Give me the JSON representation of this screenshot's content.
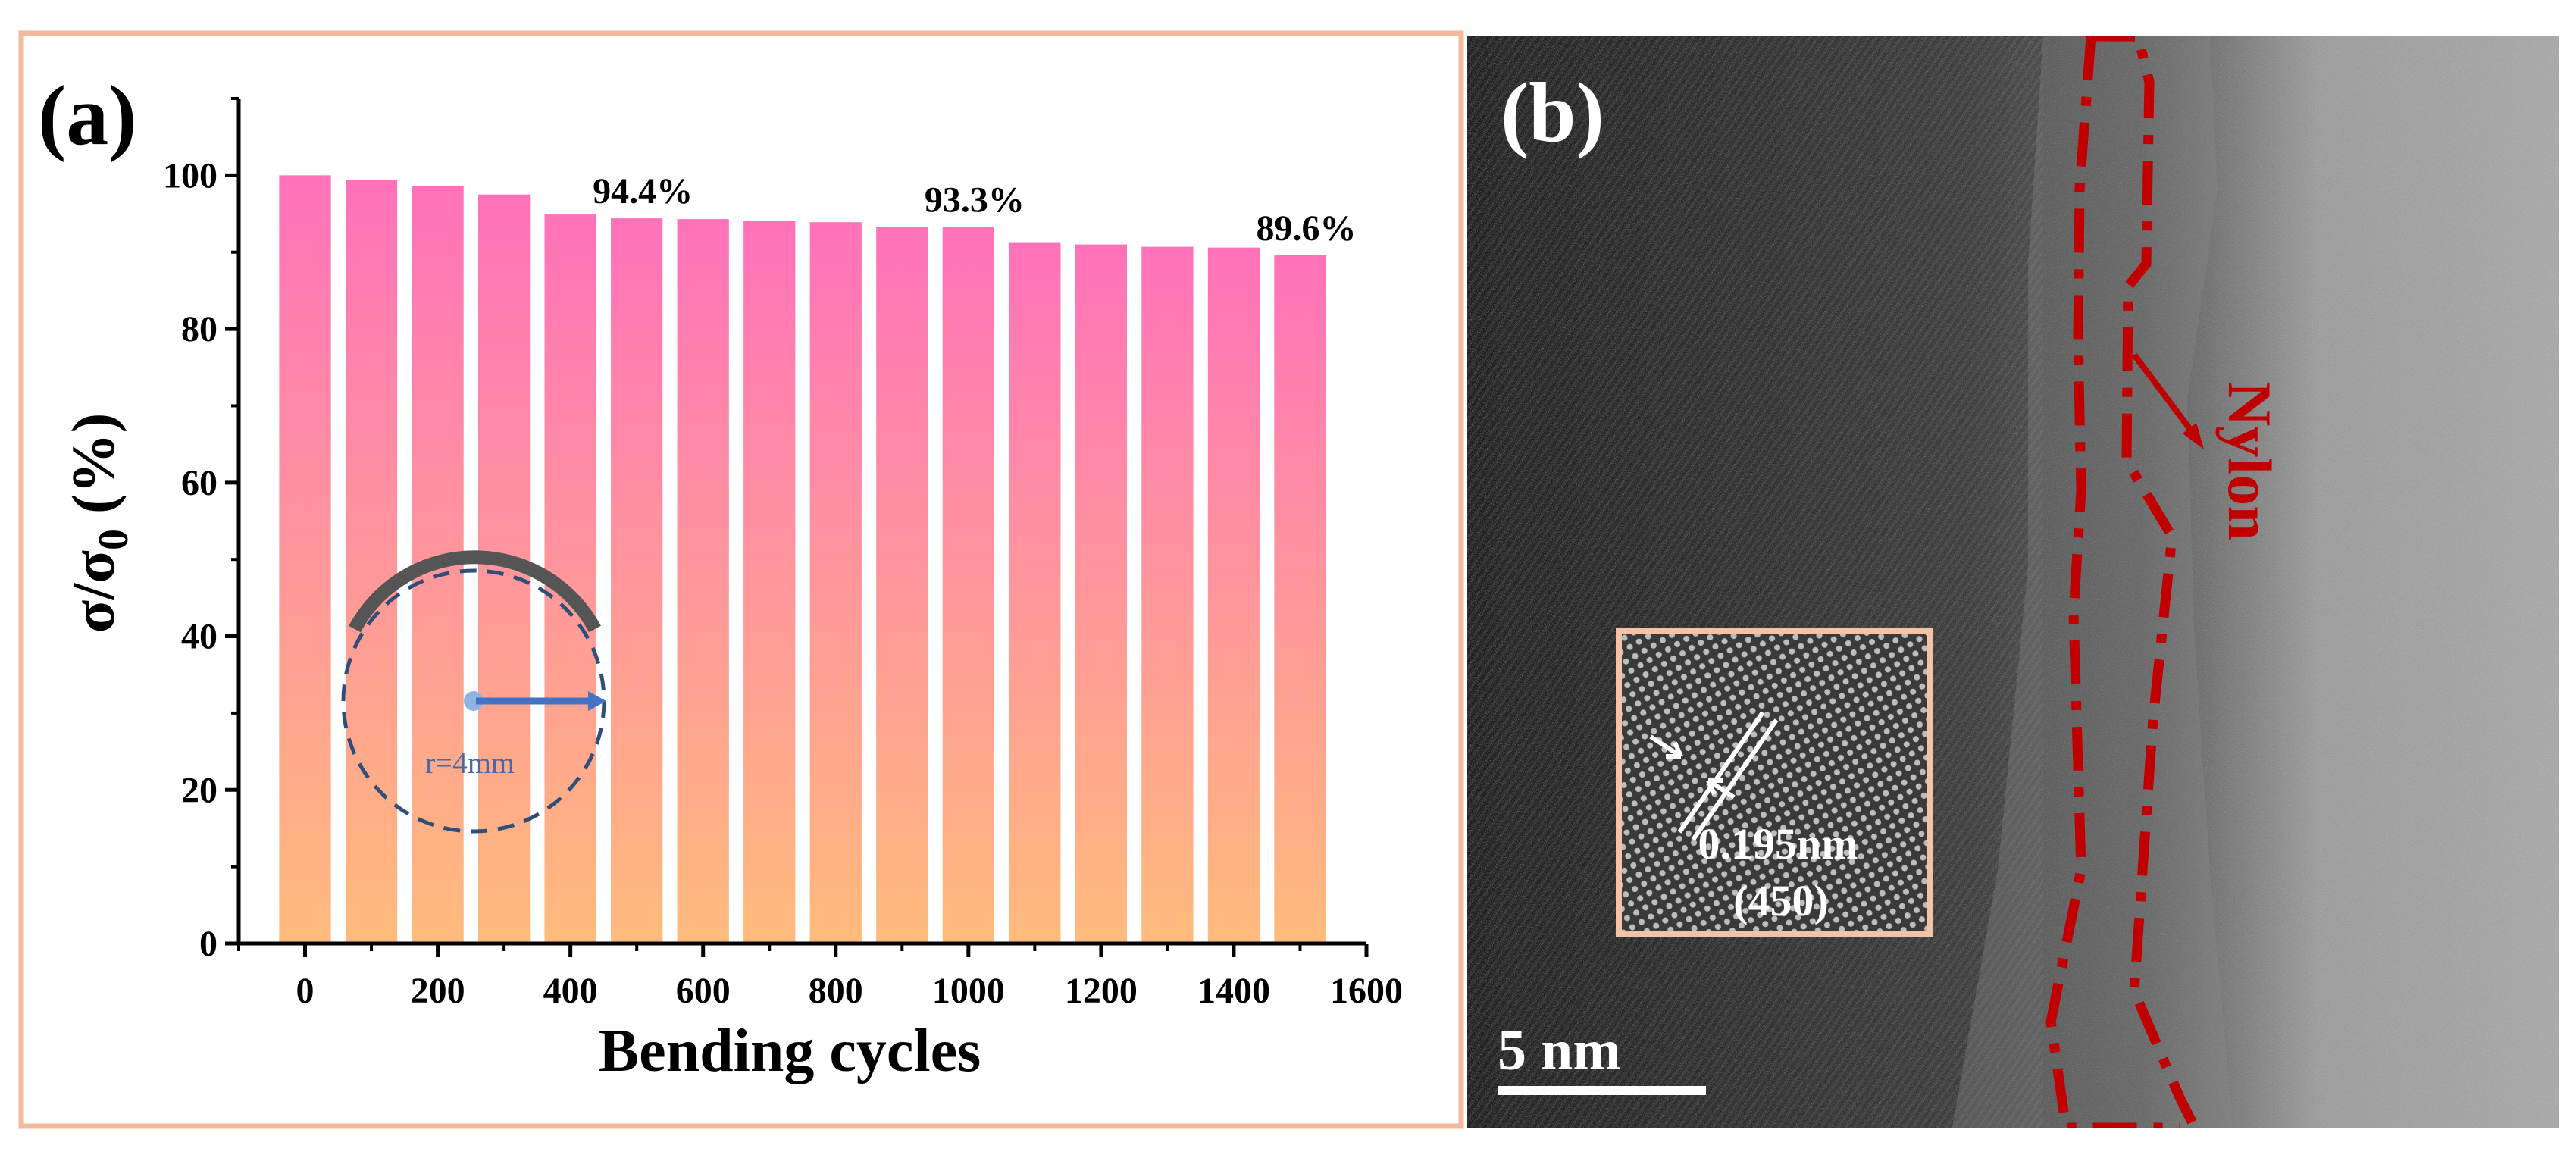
{
  "panel_a": {
    "label": "(a)",
    "inset": {
      "radius_label": "r=4mm"
    }
  },
  "panel_b": {
    "label": "(b)",
    "scale_bar_label": "5 nm",
    "nylon_label": "Nylon",
    "inset_spacing": "0.195nm",
    "inset_plane": "(450)"
  },
  "colors": {
    "frame": "#f4b89a",
    "bar_top": "#ff72ba",
    "bar_bottom": "#ffbb7c",
    "axis": "#000000",
    "nylon": "#c00000",
    "inset_circle": "#2f4e7a",
    "inset_arrow": "#4472c4",
    "inset_arc": "#555555"
  },
  "chart_data": {
    "type": "bar",
    "title": "",
    "xlabel": "Bending cycles",
    "ylabel": "σ/σ",
    "ylabel_sub": "0",
    "ylabel_suffix": " (%)",
    "x": [
      0,
      100,
      200,
      300,
      400,
      500,
      600,
      700,
      800,
      900,
      1000,
      1100,
      1200,
      1300,
      1400,
      1500
    ],
    "values": [
      100,
      99.4,
      98.6,
      97.5,
      94.9,
      94.4,
      94.3,
      94.1,
      93.9,
      93.3,
      93.3,
      91.3,
      91.0,
      90.7,
      90.6,
      89.6
    ],
    "xlim": [
      -100,
      1600
    ],
    "ylim": [
      0,
      110
    ],
    "xticks": [
      0,
      200,
      400,
      600,
      800,
      1000,
      1200,
      1400,
      1600
    ],
    "yticks": [
      0,
      20,
      40,
      60,
      80,
      100
    ],
    "annotations": [
      {
        "x": 500,
        "y": 94.4,
        "text": "94.4%"
      },
      {
        "x": 1000,
        "y": 93.3,
        "text": "93.3%"
      },
      {
        "x": 1500,
        "y": 89.6,
        "text": "89.6%"
      }
    ]
  }
}
